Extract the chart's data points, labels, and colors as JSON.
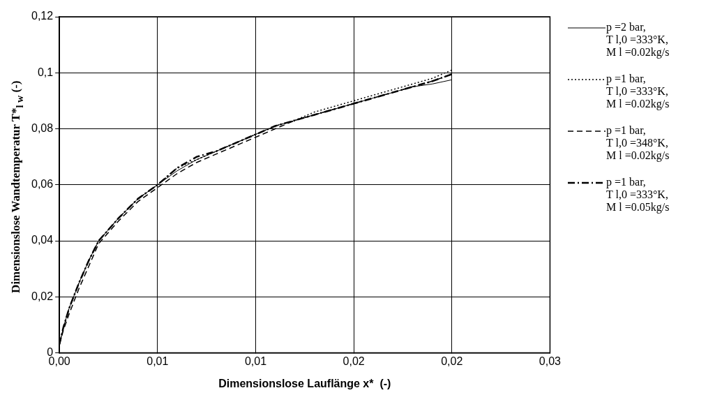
{
  "chart_data": {
    "type": "line",
    "xlabel": "Dimensionslose Lauflänge x*  (-)",
    "ylabel": "Dimensionslose Wandtemperatur T*$_{l w}$  (-)",
    "xlim": [
      0,
      0.025
    ],
    "xticks": [
      {
        "value": 0,
        "label": "0,00"
      },
      {
        "value": 0.005,
        "label": "0,01"
      },
      {
        "value": 0.01,
        "label": "0,01"
      },
      {
        "value": 0.015,
        "label": "0,02"
      },
      {
        "value": 0.02,
        "label": "0,02"
      },
      {
        "value": 0.025,
        "label": "0,03"
      }
    ],
    "ylim": [
      0,
      0.12
    ],
    "yticks": [
      0,
      {
        "value": 0.02,
        "label": "0,02"
      },
      {
        "value": 0.04,
        "label": "0,04"
      },
      {
        "value": 0.06,
        "label": "0,06"
      },
      {
        "value": 0.08,
        "label": "0,08"
      },
      {
        "value": 0.1,
        "label": "0,1"
      },
      {
        "value": 0.12,
        "label": "0,12"
      }
    ],
    "grid": true,
    "legend": "right",
    "marker": "none",
    "x": [
      0,
      0.0002,
      0.0005,
      0.001,
      0.0015,
      0.002,
      0.003,
      0.004,
      0.005,
      0.006,
      0.007,
      0.008,
      0.009,
      0.01,
      0.011,
      0.012,
      0.013,
      0.014,
      0.015,
      0.016,
      0.017,
      0.018,
      0.019,
      0.02
    ],
    "series": [
      {
        "name": "p =2 bar, T l,0 =333°K, M l =0.02kg/s",
        "color": "#000000",
        "line_style": "solid",
        "values": [
          0.003,
          0.009,
          0.016,
          0.025,
          0.033,
          0.04,
          0.048,
          0.055,
          0.06,
          0.065,
          0.069,
          0.072,
          0.075,
          0.078,
          0.081,
          0.083,
          0.085,
          0.087,
          0.089,
          0.091,
          0.093,
          0.095,
          0.096,
          0.0975
        ]
      },
      {
        "name": "p =1 bar, T l,0 =333°K, M l =0.02kg/s",
        "color": "#000000",
        "line_style": "dotted",
        "values": [
          0.003,
          0.009,
          0.016,
          0.025,
          0.033,
          0.04,
          0.048,
          0.055,
          0.06,
          0.066,
          0.069,
          0.072,
          0.075,
          0.078,
          0.081,
          0.083,
          0.086,
          0.088,
          0.09,
          0.092,
          0.094,
          0.096,
          0.098,
          0.101
        ]
      },
      {
        "name": "p =1 bar, T l,0 =348°K, M l =0.02kg/s",
        "color": "#000000",
        "line_style": "dashed",
        "values": [
          0.003,
          0.008,
          0.014,
          0.023,
          0.031,
          0.039,
          0.047,
          0.054,
          0.059,
          0.064,
          0.068,
          0.071,
          0.074,
          0.077,
          0.08,
          0.083,
          0.085,
          0.087,
          0.089,
          0.091,
          0.093,
          0.095,
          0.097,
          0.0995
        ]
      },
      {
        "name": "p =1 bar, T l,0 =333°K, M l =0.05kg/s",
        "color": "#000000",
        "line_style": "dashdot",
        "values": [
          0.003,
          0.009,
          0.016,
          0.025,
          0.033,
          0.04,
          0.048,
          0.055,
          0.06,
          0.066,
          0.07,
          0.072,
          0.075,
          0.078,
          0.081,
          0.083,
          0.085,
          0.087,
          0.089,
          0.091,
          0.093,
          0.095,
          0.097,
          0.0995
        ]
      }
    ]
  }
}
